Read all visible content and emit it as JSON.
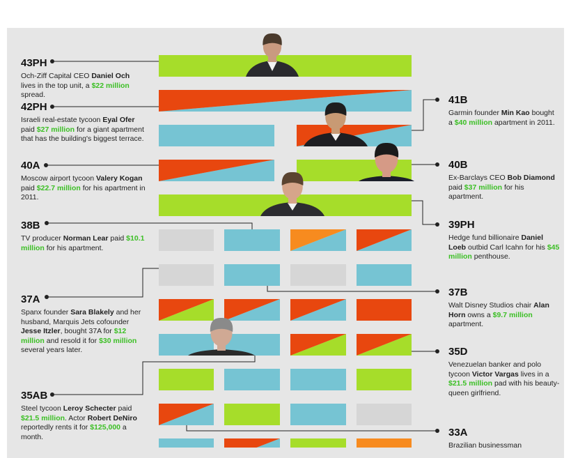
{
  "colors": {
    "green": "#a6dd2a",
    "blue": "#76c4d3",
    "orange": "#e8470f",
    "amber": "#f78b1f",
    "gray": "#d6d6d6",
    "money": "#3bbf24",
    "panel": "#e6e6e6"
  },
  "labels": [
    {
      "id": "43PH",
      "unit": "43PH",
      "parts": [
        {
          "t": "Och-Ziff Capital CEO "
        },
        {
          "t": "Daniel Och",
          "b": true
        },
        {
          "t": " lives in the top unit, a "
        },
        {
          "t": "$22 million",
          "m": true
        },
        {
          "t": " spread."
        }
      ]
    },
    {
      "id": "42PH",
      "unit": "42PH",
      "parts": [
        {
          "t": "Israeli real-estate tycoon "
        },
        {
          "t": "Eyal Ofer",
          "b": true
        },
        {
          "t": " paid "
        },
        {
          "t": "$27 million",
          "m": true
        },
        {
          "t": " for a giant apartment that has the building's biggest terrace."
        }
      ]
    },
    {
      "id": "40A",
      "unit": "40A",
      "parts": [
        {
          "t": "Moscow airport tycoon "
        },
        {
          "t": "Valery Kogan",
          "b": true
        },
        {
          "t": " paid "
        },
        {
          "t": "$22.7 million",
          "m": true
        },
        {
          "t": " for his apartment in 2011."
        }
      ]
    },
    {
      "id": "38B",
      "unit": "38B",
      "parts": [
        {
          "t": "TV producer "
        },
        {
          "t": "Norman Lear",
          "b": true
        },
        {
          "t": " paid "
        },
        {
          "t": "$10.1 million",
          "m": true
        },
        {
          "t": " for his apartment."
        }
      ]
    },
    {
      "id": "37A",
      "unit": "37A",
      "parts": [
        {
          "t": "Spanx founder "
        },
        {
          "t": "Sara Blakely",
          "b": true
        },
        {
          "t": " and her husband, Marquis Jets cofounder "
        },
        {
          "t": "Jesse Itzler",
          "b": true
        },
        {
          "t": ", bought 37A for "
        },
        {
          "t": "$12 million",
          "m": true
        },
        {
          "t": " and resold it for "
        },
        {
          "t": "$30 million",
          "m": true
        },
        {
          "t": " several years later."
        }
      ]
    },
    {
      "id": "35AB",
      "unit": "35AB",
      "parts": [
        {
          "t": "Steel tycoon "
        },
        {
          "t": "Leroy Schecter",
          "b": true
        },
        {
          "t": " paid "
        },
        {
          "t": "$21.5 million",
          "m": true
        },
        {
          "t": ". Actor "
        },
        {
          "t": "Robert DeNiro",
          "b": true
        },
        {
          "t": " reportedly rents it for "
        },
        {
          "t": "$125,000",
          "m": true
        },
        {
          "t": " a month."
        }
      ]
    },
    {
      "id": "41B",
      "unit": "41B",
      "parts": [
        {
          "t": "Garmin founder "
        },
        {
          "t": "Min Kao",
          "b": true
        },
        {
          "t": " bought a "
        },
        {
          "t": "$40 million",
          "m": true
        },
        {
          "t": " apartment in 2011."
        }
      ]
    },
    {
      "id": "40B",
      "unit": "40B",
      "parts": [
        {
          "t": "Ex-Barclays CEO "
        },
        {
          "t": "Bob Diamond",
          "b": true
        },
        {
          "t": " paid "
        },
        {
          "t": "$37 million",
          "m": true
        },
        {
          "t": " for his apartment."
        }
      ]
    },
    {
      "id": "39PH",
      "unit": "39PH",
      "parts": [
        {
          "t": "Hedge fund billionaire "
        },
        {
          "t": "Daniel Loeb",
          "b": true
        },
        {
          "t": " outbid Carl Icahn for his "
        },
        {
          "t": "$45 million",
          "m": true
        },
        {
          "t": " penthouse."
        }
      ]
    },
    {
      "id": "37B",
      "unit": "37B",
      "parts": [
        {
          "t": "Walt Disney Studios chair "
        },
        {
          "t": "Alan Horn",
          "b": true
        },
        {
          "t": " owns a "
        },
        {
          "t": "$9.7 million",
          "m": true
        },
        {
          "t": " apartment."
        }
      ]
    },
    {
      "id": "35D",
      "unit": "35D",
      "parts": [
        {
          "t": "Venezuelan banker and polo tycoon "
        },
        {
          "t": "Victor Vargas",
          "b": true
        },
        {
          "t": " lives in a "
        },
        {
          "t": "$21.5 million",
          "m": true
        },
        {
          "t": " pad with his beauty-queen girlfriend."
        }
      ]
    },
    {
      "id": "33A",
      "unit": "33A",
      "parts": [
        {
          "t": "Brazilian businessman"
        }
      ]
    }
  ],
  "units": [
    {
      "name": "unit-43ph",
      "fill": "green"
    },
    {
      "name": "unit-42ph",
      "split": [
        "orange",
        "blue"
      ],
      "dir": "rising"
    },
    {
      "name": "unit-41a",
      "fill": "blue"
    },
    {
      "name": "unit-41b",
      "split": [
        "orange",
        "blue"
      ],
      "dir": "rising"
    },
    {
      "name": "unit-40a",
      "split": [
        "orange",
        "blue"
      ],
      "dir": "rising"
    },
    {
      "name": "unit-40b",
      "fill": "green"
    },
    {
      "name": "unit-39ph",
      "fill": "green"
    },
    {
      "name": "unit-38a",
      "fill": "gray"
    },
    {
      "name": "unit-38b",
      "fill": "blue"
    },
    {
      "name": "unit-38c",
      "split": [
        "amber",
        "blue"
      ],
      "dir": "rising"
    },
    {
      "name": "unit-38d",
      "split": [
        "orange",
        "blue"
      ],
      "dir": "rising"
    },
    {
      "name": "unit-37a",
      "fill": "gray"
    },
    {
      "name": "unit-37b",
      "fill": "blue"
    },
    {
      "name": "unit-37c",
      "fill": "gray"
    },
    {
      "name": "unit-37d",
      "fill": "blue"
    },
    {
      "name": "unit-36a",
      "split": [
        "orange",
        "green"
      ],
      "dir": "rising"
    },
    {
      "name": "unit-36b",
      "split": [
        "orange",
        "blue"
      ],
      "dir": "rising"
    },
    {
      "name": "unit-36c",
      "split": [
        "orange",
        "blue"
      ],
      "dir": "rising"
    },
    {
      "name": "unit-36d",
      "fill": "orange"
    },
    {
      "name": "unit-35a",
      "fill": "blue"
    },
    {
      "name": "unit-35b",
      "fill": "blue"
    },
    {
      "name": "unit-35c",
      "split": [
        "orange",
        "green"
      ],
      "dir": "rising"
    },
    {
      "name": "unit-35d",
      "split": [
        "orange",
        "green"
      ],
      "dir": "rising"
    },
    {
      "name": "unit-34a",
      "fill": "green"
    },
    {
      "name": "unit-34b",
      "fill": "blue"
    },
    {
      "name": "unit-34c",
      "fill": "blue"
    },
    {
      "name": "unit-34d",
      "fill": "green"
    },
    {
      "name": "unit-33a",
      "split": [
        "orange",
        "blue"
      ],
      "dir": "rising"
    },
    {
      "name": "unit-33b",
      "fill": "green"
    },
    {
      "name": "unit-33c",
      "fill": "blue"
    },
    {
      "name": "unit-33d",
      "fill": "gray"
    },
    {
      "name": "unit-32a",
      "fill": "blue"
    },
    {
      "name": "unit-32b",
      "split": [
        "orange",
        "blue"
      ],
      "dir": "rising"
    },
    {
      "name": "unit-32c",
      "fill": "green"
    },
    {
      "name": "unit-32d",
      "fill": "amber"
    }
  ],
  "portraits": [
    {
      "name": "portrait-daniel-och",
      "skin": "#c99a80",
      "hair": "#4a3a2c",
      "suit": "#2a2a2e"
    },
    {
      "name": "portrait-min-kao",
      "skin": "#c89a74",
      "hair": "#1e1e1e",
      "suit": "#1e1e22"
    },
    {
      "name": "portrait-bob-diamond",
      "skin": "#d59a86",
      "hair": "#1a1a1a",
      "suit": "#1b1f2a"
    },
    {
      "name": "portrait-daniel-loeb",
      "skin": "#d6a58a",
      "hair": "#5a4330",
      "suit": "#2c2c30"
    },
    {
      "name": "portrait-robert-deniro",
      "skin": "#d0a994",
      "hair": "#8a8a8a",
      "suit": "#2a2a2a"
    }
  ]
}
